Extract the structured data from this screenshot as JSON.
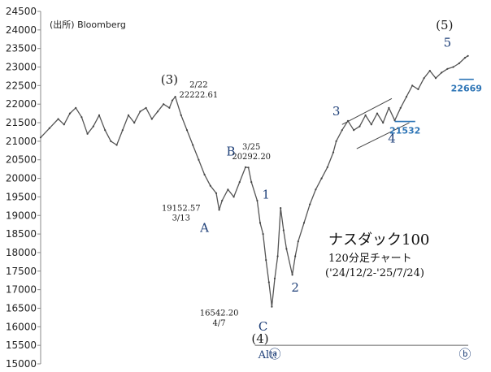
{
  "chart_data": {
    "type": "line",
    "source": "(出所) Bloomberg",
    "title": "ナスダック100",
    "subtitle": "120分足チャート",
    "period": "('24/12/2-'25/7/24)",
    "ylim": [
      15000,
      24500
    ],
    "y_ticks": [
      15000,
      15500,
      16000,
      16500,
      17000,
      17500,
      18000,
      18500,
      19000,
      19500,
      20000,
      20500,
      21000,
      21500,
      22000,
      22500,
      23000,
      23500,
      24000,
      24500
    ],
    "series": [
      {
        "values": [
          {
            "x": 0,
            "y": 21100
          },
          {
            "x": 3,
            "y": 21350
          },
          {
            "x": 6,
            "y": 21600
          },
          {
            "x": 8,
            "y": 21450
          },
          {
            "x": 10,
            "y": 21750
          },
          {
            "x": 12,
            "y": 21900
          },
          {
            "x": 14,
            "y": 21650
          },
          {
            "x": 16,
            "y": 21200
          },
          {
            "x": 18,
            "y": 21400
          },
          {
            "x": 20,
            "y": 21700
          },
          {
            "x": 22,
            "y": 21300
          },
          {
            "x": 24,
            "y": 21000
          },
          {
            "x": 26,
            "y": 20900
          },
          {
            "x": 28,
            "y": 21300
          },
          {
            "x": 30,
            "y": 21700
          },
          {
            "x": 32,
            "y": 21500
          },
          {
            "x": 34,
            "y": 21800
          },
          {
            "x": 36,
            "y": 21900
          },
          {
            "x": 38,
            "y": 21600
          },
          {
            "x": 40,
            "y": 21800
          },
          {
            "x": 42,
            "y": 22000
          },
          {
            "x": 44,
            "y": 21900
          },
          {
            "x": 45,
            "y": 22100
          },
          {
            "x": 46,
            "y": 22200
          },
          {
            "x": 48,
            "y": 21700
          },
          {
            "x": 50,
            "y": 21300
          },
          {
            "x": 52,
            "y": 20900
          },
          {
            "x": 54,
            "y": 20500
          },
          {
            "x": 56,
            "y": 20100
          },
          {
            "x": 58,
            "y": 19800
          },
          {
            "x": 60,
            "y": 19600
          },
          {
            "x": 61,
            "y": 19150
          },
          {
            "x": 62,
            "y": 19400
          },
          {
            "x": 64,
            "y": 19700
          },
          {
            "x": 66,
            "y": 19500
          },
          {
            "x": 68,
            "y": 19900
          },
          {
            "x": 70,
            "y": 20300
          },
          {
            "x": 71,
            "y": 20290
          },
          {
            "x": 72,
            "y": 19900
          },
          {
            "x": 74,
            "y": 19400
          },
          {
            "x": 75,
            "y": 18800
          },
          {
            "x": 76,
            "y": 18500
          },
          {
            "x": 77,
            "y": 17800
          },
          {
            "x": 78,
            "y": 17200
          },
          {
            "x": 79,
            "y": 16542
          },
          {
            "x": 80,
            "y": 17300
          },
          {
            "x": 81,
            "y": 17900
          },
          {
            "x": 82,
            "y": 19200
          },
          {
            "x": 83,
            "y": 18600
          },
          {
            "x": 84,
            "y": 18100
          },
          {
            "x": 86,
            "y": 17400
          },
          {
            "x": 87,
            "y": 17900
          },
          {
            "x": 88,
            "y": 18300
          },
          {
            "x": 90,
            "y": 18800
          },
          {
            "x": 92,
            "y": 19300
          },
          {
            "x": 94,
            "y": 19700
          },
          {
            "x": 96,
            "y": 20000
          },
          {
            "x": 98,
            "y": 20300
          },
          {
            "x": 100,
            "y": 20700
          },
          {
            "x": 101,
            "y": 21000
          },
          {
            "x": 103,
            "y": 21300
          },
          {
            "x": 105,
            "y": 21550
          },
          {
            "x": 107,
            "y": 21300
          },
          {
            "x": 109,
            "y": 21400
          },
          {
            "x": 111,
            "y": 21700
          },
          {
            "x": 113,
            "y": 21450
          },
          {
            "x": 115,
            "y": 21750
          },
          {
            "x": 117,
            "y": 21500
          },
          {
            "x": 119,
            "y": 21900
          },
          {
            "x": 121,
            "y": 21560
          },
          {
            "x": 123,
            "y": 21900
          },
          {
            "x": 125,
            "y": 22200
          },
          {
            "x": 127,
            "y": 22500
          },
          {
            "x": 129,
            "y": 22400
          },
          {
            "x": 131,
            "y": 22700
          },
          {
            "x": 133,
            "y": 22900
          },
          {
            "x": 135,
            "y": 22700
          },
          {
            "x": 137,
            "y": 22850
          },
          {
            "x": 139,
            "y": 22950
          },
          {
            "x": 141,
            "y": 23000
          },
          {
            "x": 143,
            "y": 23100
          },
          {
            "x": 145,
            "y": 23250
          },
          {
            "x": 146,
            "y": 23300
          }
        ]
      }
    ],
    "x_range": [
      0,
      150
    ],
    "channel": {
      "upper": [
        {
          "x": 103,
          "y": 21450
        },
        {
          "x": 120,
          "y": 22150
        }
      ],
      "lower": [
        {
          "x": 108,
          "y": 20800
        },
        {
          "x": 126,
          "y": 21500
        }
      ]
    },
    "levels": [
      {
        "label": "22669",
        "value": 22669,
        "x_from": 143,
        "x_to": 148
      },
      {
        "label": "21532",
        "value": 21532,
        "x_from": 121,
        "x_to": 128
      }
    ],
    "alt_line": {
      "value": 15500,
      "x_from": 76,
      "x_to": 150,
      "label": "Alt:",
      "marks": [
        {
          "text": "ⓐ",
          "x": 80
        },
        {
          "text": "ⓑ",
          "x": 145
        }
      ]
    },
    "wave_labels": [
      {
        "text": "(3)",
        "x": 44,
        "y": 22550,
        "color": "#1a1a1a",
        "size": 15
      },
      {
        "text": "2/22",
        "x": 54,
        "y": 22450,
        "color": "#1a1a1a",
        "size": 10
      },
      {
        "text": "22222.61",
        "x": 54,
        "y": 22180,
        "color": "#1a1a1a",
        "size": 10
      },
      {
        "text": "19152.57",
        "x": 48,
        "y": 19130,
        "color": "#1a1a1a",
        "size": 10
      },
      {
        "text": "3/13",
        "x": 48,
        "y": 18860,
        "color": "#1a1a1a",
        "size": 10
      },
      {
        "text": "A",
        "x": 56,
        "y": 18560,
        "color": "#1e3f78",
        "size": 15
      },
      {
        "text": "B",
        "x": 65,
        "y": 20620,
        "color": "#1e3f78",
        "size": 15
      },
      {
        "text": "3/25",
        "x": 72,
        "y": 20780,
        "color": "#1a1a1a",
        "size": 10
      },
      {
        "text": "20292.20",
        "x": 72,
        "y": 20520,
        "color": "#1a1a1a",
        "size": 10
      },
      {
        "text": "1",
        "x": 77,
        "y": 19450,
        "color": "#1e3f78",
        "size": 15
      },
      {
        "text": "2",
        "x": 87,
        "y": 16950,
        "color": "#1e3f78",
        "size": 15
      },
      {
        "text": "16542.20",
        "x": 61,
        "y": 16300,
        "color": "#1a1a1a",
        "size": 10
      },
      {
        "text": "4/7",
        "x": 61,
        "y": 16030,
        "color": "#1a1a1a",
        "size": 10
      },
      {
        "text": "C",
        "x": 76,
        "y": 15900,
        "color": "#1e3f78",
        "size": 15
      },
      {
        "text": "(4)",
        "x": 75,
        "y": 15570,
        "color": "#1a1a1a",
        "size": 15
      },
      {
        "text": "3",
        "x": 101,
        "y": 21700,
        "color": "#1e3f78",
        "size": 15
      },
      {
        "text": "4",
        "x": 120,
        "y": 20970,
        "color": "#1e3f78",
        "size": 15
      },
      {
        "text": "(5)",
        "x": 138,
        "y": 24020,
        "color": "#1a1a1a",
        "size": 15
      },
      {
        "text": "5",
        "x": 139,
        "y": 23550,
        "color": "#1e3f78",
        "size": 15
      }
    ]
  }
}
